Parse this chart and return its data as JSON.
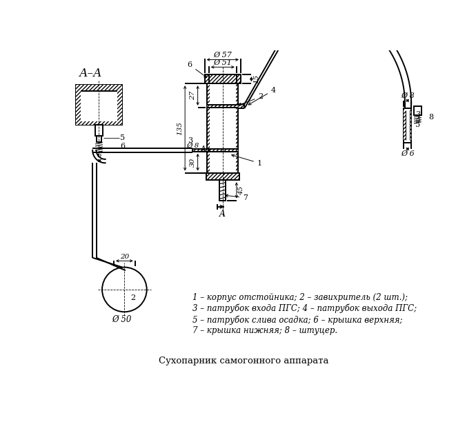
{
  "bg_color": "#ffffff",
  "line_color": "#000000",
  "title": "Сухопарник самогонного аппарата",
  "legend_lines": [
    "1 – корпус отстойника; 2 – завихритель (2 шт.);",
    "3 – патрубок входа ПГС; 4 – патрубок выхода ПГС;",
    "5 – патрубок слива осадка; 6 – крышка верхняя;",
    "7 – крышка нижняя; 8 – штуцер."
  ],
  "section_label": "А–А"
}
